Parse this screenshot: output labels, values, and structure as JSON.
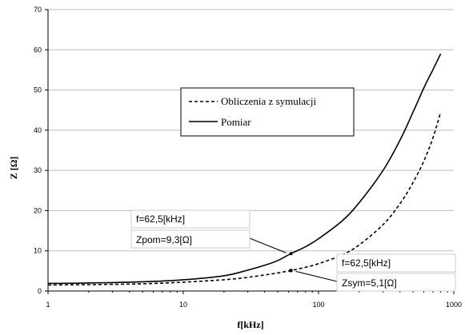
{
  "chart_data": {
    "type": "line",
    "xlabel": "f[kHz]",
    "ylabel": "Z [Ω]",
    "xscale": "log",
    "xlim": [
      1,
      1000
    ],
    "ylim": [
      0,
      70
    ],
    "x_ticks": [
      "1",
      "10",
      "100",
      "1000"
    ],
    "y_ticks": [
      "0",
      "10",
      "20",
      "30",
      "40",
      "50",
      "60",
      "70"
    ],
    "grid": "horizontal",
    "legend_position": "center",
    "series": [
      {
        "name": "Obliczenia z symulacji",
        "style": "dashed",
        "color": "#000000",
        "x": [
          1,
          2,
          5,
          10,
          20,
          30,
          40,
          50,
          62.5,
          80,
          100,
          150,
          200,
          300,
          400,
          500,
          600,
          700,
          800
        ],
        "y": [
          1.5,
          1.6,
          1.8,
          2.2,
          2.8,
          3.4,
          4.0,
          4.5,
          5.1,
          5.9,
          6.8,
          9.0,
          11.5,
          16.5,
          21.7,
          27.0,
          32.3,
          38.0,
          44.5
        ]
      },
      {
        "name": "Pomiar",
        "style": "solid",
        "color": "#000000",
        "x": [
          1,
          2,
          5,
          10,
          20,
          30,
          40,
          50,
          62.5,
          80,
          100,
          150,
          200,
          300,
          400,
          500,
          600,
          700,
          800
        ],
        "y": [
          1.9,
          2.0,
          2.3,
          2.8,
          3.8,
          5.2,
          6.4,
          7.6,
          9.3,
          11.0,
          13.0,
          17.5,
          22.0,
          30.0,
          37.5,
          44.5,
          50.5,
          55.0,
          59.0
        ]
      }
    ],
    "annotations": [
      {
        "lines": [
          "f=62,5[kHz]",
          "Zpom=9,3[Ω]"
        ],
        "x": 62.5,
        "y": 9.3,
        "marker": "dot"
      },
      {
        "lines": [
          "f=62,5[kHz]",
          "Zsym=5,1[Ω]"
        ],
        "x": 62.5,
        "y": 5.1,
        "marker": "square"
      }
    ]
  }
}
